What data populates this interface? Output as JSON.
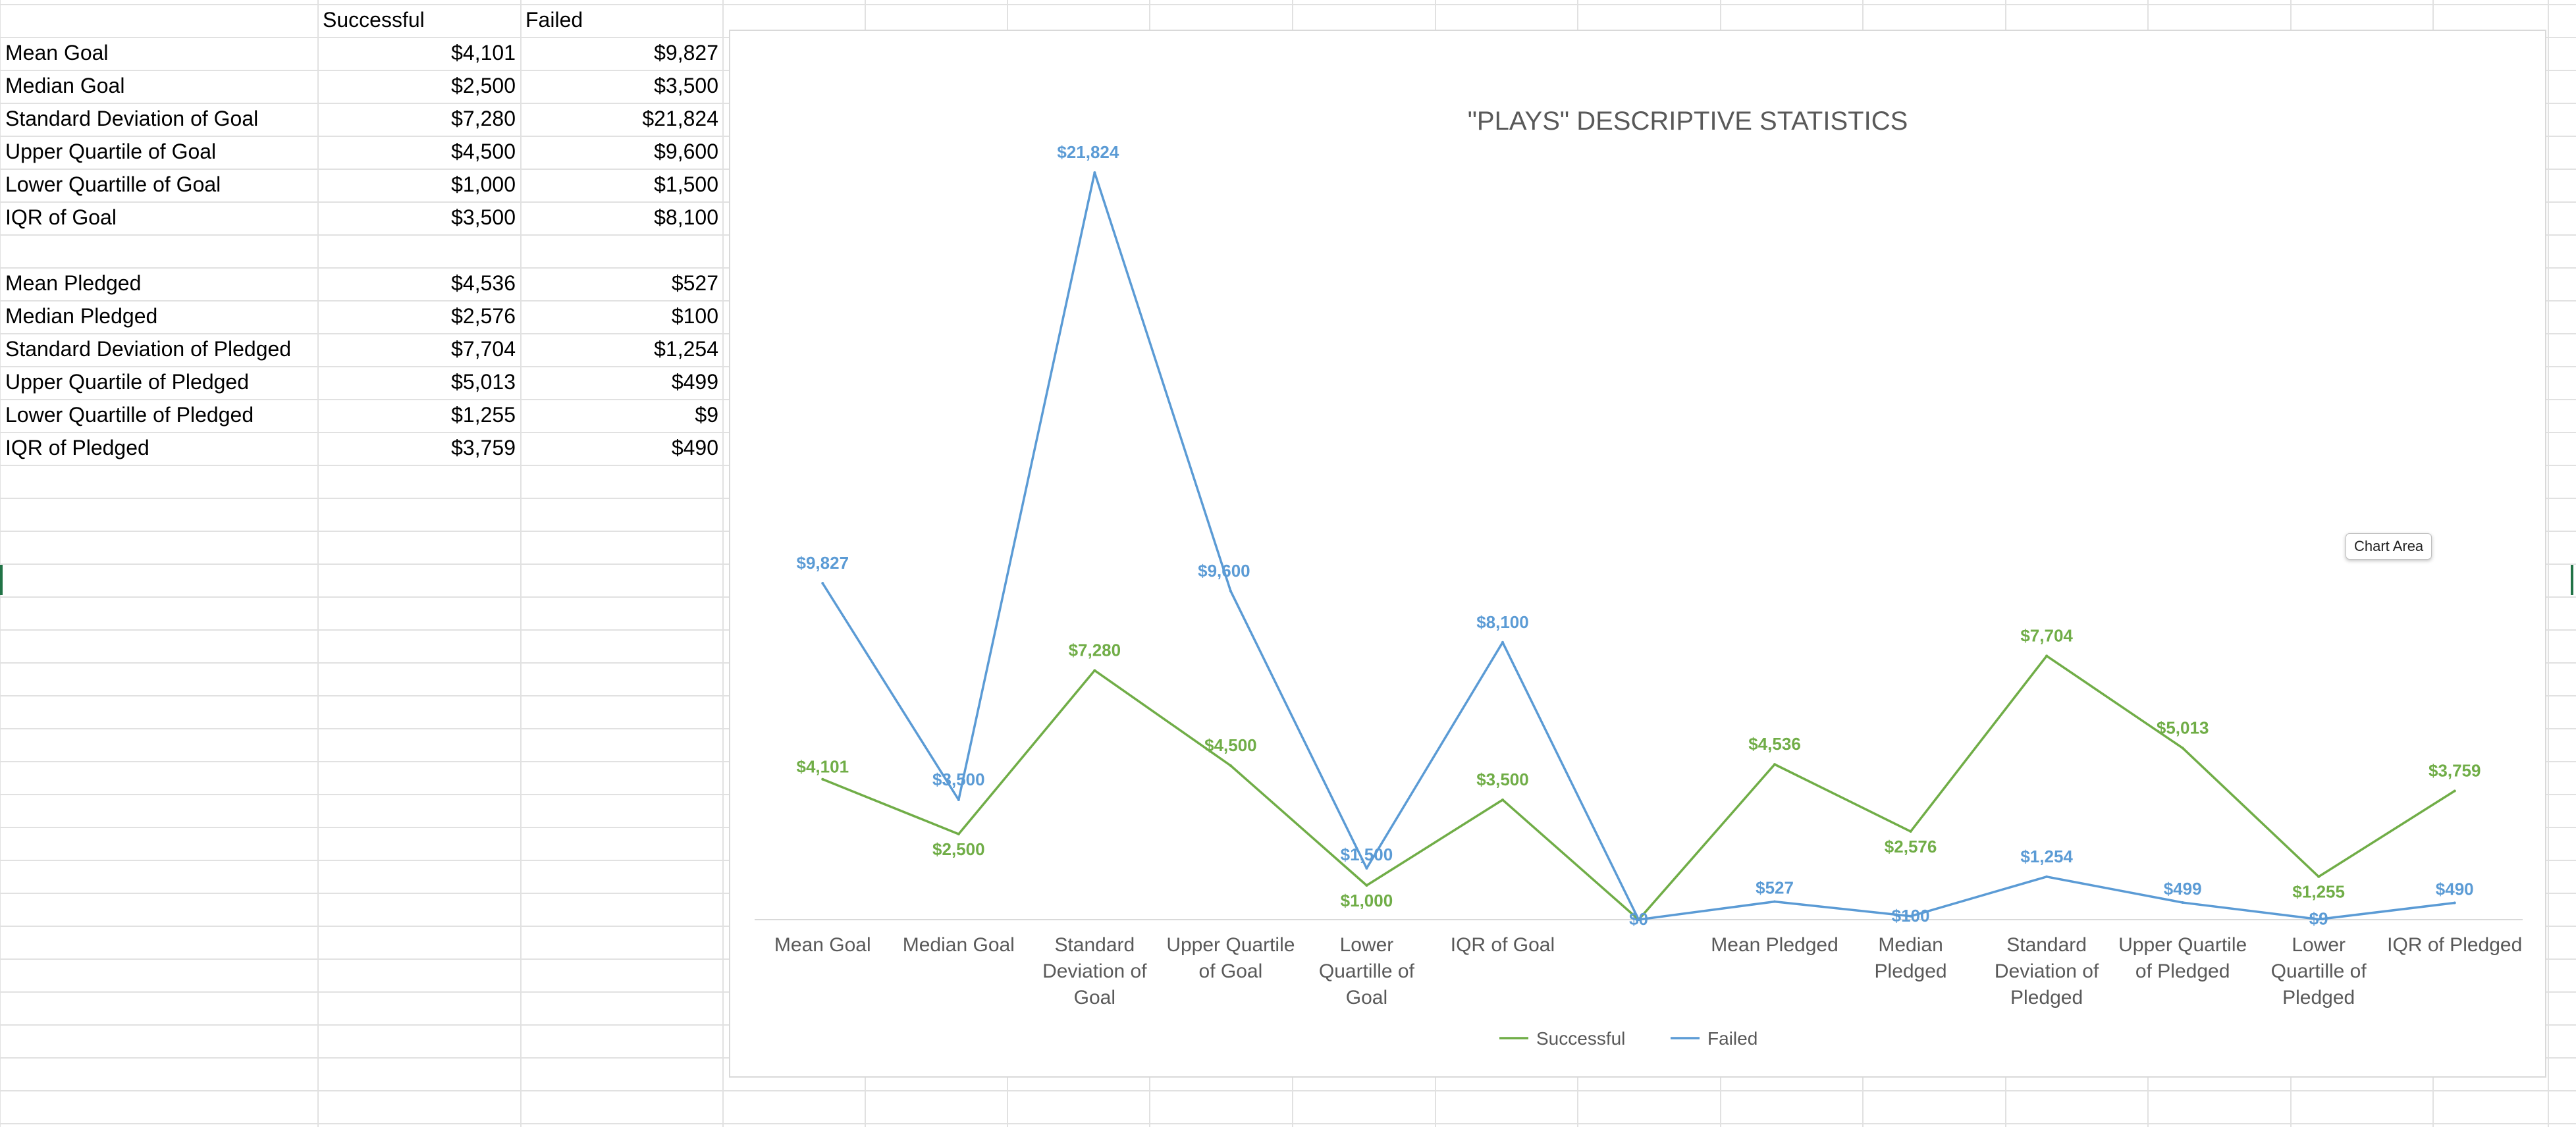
{
  "sheet": {
    "headers": {
      "successful": "Successful",
      "failed": "Failed"
    },
    "rows": [
      {
        "label": "Mean Goal",
        "successful": "$4,101",
        "failed": "$9,827"
      },
      {
        "label": "Median Goal",
        "successful": "$2,500",
        "failed": "$3,500"
      },
      {
        "label": "Standard Deviation of Goal",
        "successful": "$7,280",
        "failed": "$21,824"
      },
      {
        "label": "Upper Quartile of Goal",
        "successful": "$4,500",
        "failed": "$9,600"
      },
      {
        "label": "Lower Quartille of Goal",
        "successful": "$1,000",
        "failed": "$1,500"
      },
      {
        "label": "IQR of Goal",
        "successful": "$3,500",
        "failed": "$8,100"
      },
      {
        "label": "",
        "successful": "",
        "failed": ""
      },
      {
        "label": "Mean Pledged",
        "successful": "$4,536",
        "failed": "$527"
      },
      {
        "label": "Median Pledged",
        "successful": "$2,576",
        "failed": "$100"
      },
      {
        "label": "Standard Deviation of Pledged",
        "successful": "$7,704",
        "failed": "$1,254"
      },
      {
        "label": "Upper Quartile of Pledged",
        "successful": "$5,013",
        "failed": "$499"
      },
      {
        "label": "Lower Quartille of Pledged",
        "successful": "$1,255",
        "failed": "$9"
      },
      {
        "label": "IQR of Pledged",
        "successful": "$3,759",
        "failed": "$490"
      }
    ]
  },
  "tooltip": "Chart Area",
  "colors": {
    "successful": "#70AD47",
    "failed": "#5B9BD5",
    "axis": "#d9d9d9",
    "text": "#595959",
    "gridline": "#e1e1e1"
  },
  "chart_data": {
    "type": "line",
    "title": "\"PLAYS\" DESCRIPTIVE STATISTICS",
    "categories": [
      [
        "Mean Goal"
      ],
      [
        "Median Goal"
      ],
      [
        "Standard",
        "Deviation of",
        "Goal"
      ],
      [
        "Upper Quartile",
        "of Goal"
      ],
      [
        "Lower",
        "Quartille of",
        "Goal"
      ],
      [
        "IQR of Goal"
      ],
      [
        ""
      ],
      [
        "Mean Pledged"
      ],
      [
        "Median",
        "Pledged"
      ],
      [
        "Standard",
        "Deviation of",
        "Pledged"
      ],
      [
        "Upper Quartile",
        "of Pledged"
      ],
      [
        "Lower",
        "Quartille of",
        "Pledged"
      ],
      [
        "IQR of Pledged"
      ]
    ],
    "ylim": [
      0,
      22500
    ],
    "legend": "bottom",
    "series": [
      {
        "name": "Successful",
        "values": [
          4101,
          2500,
          7280,
          4500,
          1000,
          3500,
          0,
          4536,
          2576,
          7704,
          5013,
          1255,
          3759
        ],
        "labels": [
          "$4,101",
          "$2,500",
          "$7,280",
          "$4,500",
          "$1,000",
          "$3,500",
          "",
          "$4,536",
          "$2,576",
          "$7,704",
          "$5,013",
          "$1,255",
          "$3,759"
        ]
      },
      {
        "name": "Failed",
        "values": [
          9827,
          3500,
          21824,
          9600,
          1500,
          8100,
          0,
          527,
          100,
          1254,
          499,
          9,
          490
        ],
        "labels": [
          "$9,827",
          "$3,500",
          "$21,824",
          "$9,600",
          "$1,500",
          "$8,100",
          "$0",
          "$527",
          "$100",
          "$1,254",
          "$499",
          "$9",
          "$490"
        ]
      }
    ]
  }
}
